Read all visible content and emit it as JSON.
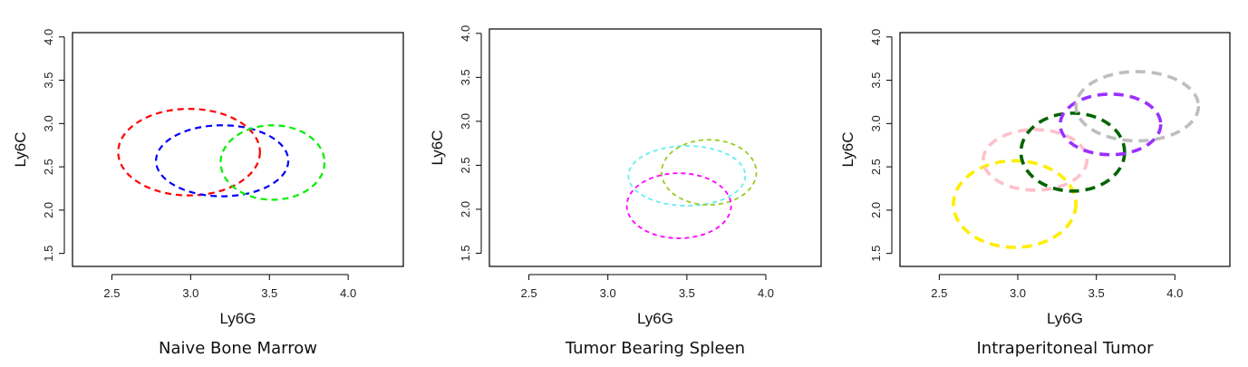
{
  "chart_data": [
    {
      "type": "scatter",
      "title": "Naive Bone Marrow",
      "xlabel": "Ly6G",
      "ylabel": "Ly6C",
      "xlim": [
        2.25,
        4.35
      ],
      "ylim": [
        1.35,
        4.05
      ],
      "xticks": [
        "2.5",
        "3.0",
        "3.5",
        "4.0"
      ],
      "yticks": [
        "1.5",
        "2.0",
        "2.5",
        "3.0",
        "3.5",
        "4.0"
      ],
      "grid": false,
      "ellipses": [
        {
          "cx": 2.99,
          "cy": 2.67,
          "rx": 0.45,
          "ry": 0.5,
          "color": "#ff0000",
          "style": "dashed"
        },
        {
          "cx": 3.2,
          "cy": 2.57,
          "rx": 0.42,
          "ry": 0.41,
          "color": "#0000ff",
          "style": "dashed"
        },
        {
          "cx": 3.52,
          "cy": 2.55,
          "rx": 0.33,
          "ry": 0.43,
          "color": "#00ee00",
          "style": "dashed"
        }
      ]
    },
    {
      "type": "scatter",
      "title": "Tumor Bearing Spleen",
      "xlabel": "Ly6G",
      "ylabel": "Ly6C",
      "xlim": [
        2.25,
        4.35
      ],
      "ylim": [
        1.35,
        4.05
      ],
      "xticks": [
        "2.5",
        "3.0",
        "3.5",
        "4.0"
      ],
      "yticks": [
        "1.5",
        "2.0",
        "2.5",
        "3.0",
        "3.5",
        "4.0"
      ],
      "grid": false,
      "ellipses": [
        {
          "cx": 3.5,
          "cy": 2.38,
          "rx": 0.37,
          "ry": 0.34,
          "color": "#66eeee",
          "style": "dashed"
        },
        {
          "cx": 3.64,
          "cy": 2.42,
          "rx": 0.3,
          "ry": 0.37,
          "color": "#99cc22",
          "style": "dashed"
        },
        {
          "cx": 3.45,
          "cy": 2.04,
          "rx": 0.33,
          "ry": 0.37,
          "color": "#ff00ff",
          "style": "dashed"
        }
      ]
    },
    {
      "type": "scatter",
      "title": "Intraperitoneal Tumor",
      "xlabel": "Ly6G",
      "ylabel": "Ly6C",
      "xlim": [
        2.25,
        4.35
      ],
      "ylim": [
        1.35,
        4.05
      ],
      "xticks": [
        "2.5",
        "3.0",
        "3.5",
        "4.0"
      ],
      "yticks": [
        "1.5",
        "2.0",
        "2.5",
        "3.0",
        "3.5",
        "4.0"
      ],
      "grid": false,
      "ellipses": [
        {
          "cx": 2.98,
          "cy": 2.07,
          "rx": 0.39,
          "ry": 0.5,
          "color": "#ffee00",
          "style": "dashed"
        },
        {
          "cx": 3.11,
          "cy": 2.58,
          "rx": 0.33,
          "ry": 0.35,
          "color": "#ffc0cb",
          "style": "dashed"
        },
        {
          "cx": 3.35,
          "cy": 2.67,
          "rx": 0.33,
          "ry": 0.45,
          "color": "#006400",
          "style": "dashed"
        },
        {
          "cx": 3.59,
          "cy": 2.99,
          "rx": 0.32,
          "ry": 0.35,
          "color": "#9b30ff",
          "style": "dashed"
        },
        {
          "cx": 3.76,
          "cy": 3.2,
          "rx": 0.39,
          "ry": 0.4,
          "color": "#bebebe",
          "style": "dashed"
        }
      ]
    }
  ]
}
